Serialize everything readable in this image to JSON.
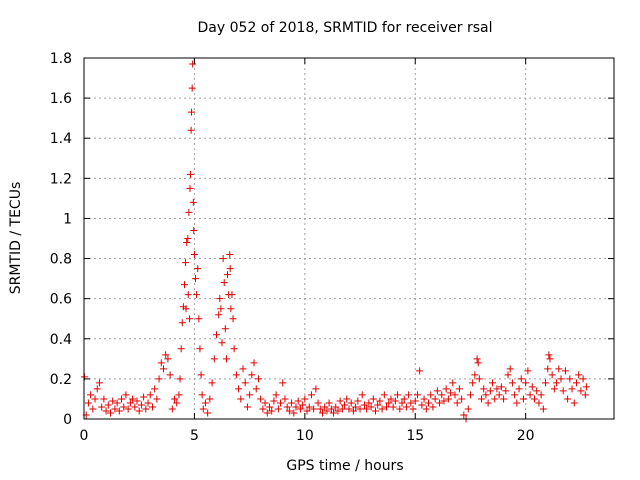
{
  "chart_data": {
    "type": "scatter",
    "title": "Day 052 of 2018, SRMTID for receiver rsal",
    "xlabel": "GPS time / hours",
    "ylabel": "SRMTID / TECUs",
    "xlim": [
      0,
      24
    ],
    "ylim": [
      0,
      1.8
    ],
    "x_ticks": [
      0,
      5,
      10,
      15,
      20
    ],
    "x_tick_labels": [
      "0",
      "5",
      "10",
      "15",
      "20"
    ],
    "y_ticks": [
      0,
      0.2,
      0.4,
      0.6,
      0.8,
      1.0,
      1.2,
      1.4,
      1.6,
      1.8
    ],
    "y_tick_labels": [
      "0",
      "0.2",
      "0.4",
      "0.6",
      "0.8",
      "1",
      "1.2",
      "1.4",
      "1.6",
      "1.8"
    ],
    "grid": true,
    "marker": "plus",
    "series_color": "#e00000",
    "series": [
      {
        "name": "SRMTID",
        "points": [
          [
            0.02,
            0.21
          ],
          [
            0.1,
            0.02
          ],
          [
            0.2,
            0.08
          ],
          [
            0.3,
            0.12
          ],
          [
            0.4,
            0.05
          ],
          [
            0.5,
            0.1
          ],
          [
            0.6,
            0.15
          ],
          [
            0.7,
            0.18
          ],
          [
            0.8,
            0.06
          ],
          [
            0.9,
            0.1
          ],
          [
            1.0,
            0.04
          ],
          [
            1.1,
            0.07
          ],
          [
            1.2,
            0.03
          ],
          [
            1.3,
            0.09
          ],
          [
            1.4,
            0.05
          ],
          [
            1.5,
            0.08
          ],
          [
            1.6,
            0.04
          ],
          [
            1.7,
            0.1
          ],
          [
            1.8,
            0.06
          ],
          [
            1.9,
            0.12
          ],
          [
            2.0,
            0.05
          ],
          [
            2.1,
            0.08
          ],
          [
            2.2,
            0.1
          ],
          [
            2.3,
            0.06
          ],
          [
            2.4,
            0.09
          ],
          [
            2.5,
            0.04
          ],
          [
            2.6,
            0.07
          ],
          [
            2.7,
            0.11
          ],
          [
            2.8,
            0.05
          ],
          [
            2.9,
            0.08
          ],
          [
            3.0,
            0.12
          ],
          [
            3.1,
            0.06
          ],
          [
            3.2,
            0.15
          ],
          [
            3.3,
            0.1
          ],
          [
            3.4,
            0.2
          ],
          [
            3.5,
            0.28
          ],
          [
            3.6,
            0.25
          ],
          [
            3.7,
            0.32
          ],
          [
            3.8,
            0.3
          ],
          [
            3.9,
            0.22
          ],
          [
            4.0,
            0.05
          ],
          [
            4.1,
            0.1
          ],
          [
            4.2,
            0.08
          ],
          [
            4.3,
            0.12
          ],
          [
            4.35,
            0.2
          ],
          [
            4.4,
            0.35
          ],
          [
            4.45,
            0.48
          ],
          [
            4.5,
            0.56
          ],
          [
            4.55,
            0.67
          ],
          [
            4.6,
            0.78
          ],
          [
            4.62,
            0.55
          ],
          [
            4.65,
            0.88
          ],
          [
            4.7,
            0.9
          ],
          [
            4.72,
            0.62
          ],
          [
            4.75,
            1.03
          ],
          [
            4.78,
            0.5
          ],
          [
            4.8,
            1.15
          ],
          [
            4.82,
            1.22
          ],
          [
            4.85,
            1.44
          ],
          [
            4.87,
            1.53
          ],
          [
            4.9,
            1.65
          ],
          [
            4.92,
            1.77
          ],
          [
            4.95,
            1.08
          ],
          [
            4.97,
            0.94
          ],
          [
            5.0,
            0.82
          ],
          [
            5.05,
            0.7
          ],
          [
            5.1,
            0.62
          ],
          [
            5.15,
            0.75
          ],
          [
            5.2,
            0.5
          ],
          [
            5.25,
            0.35
          ],
          [
            5.3,
            0.22
          ],
          [
            5.35,
            0.12
          ],
          [
            5.4,
            0.05
          ],
          [
            5.5,
            0.08
          ],
          [
            5.6,
            0.03
          ],
          [
            5.7,
            0.1
          ],
          [
            5.8,
            0.18
          ],
          [
            5.9,
            0.3
          ],
          [
            6.0,
            0.42
          ],
          [
            6.1,
            0.52
          ],
          [
            6.15,
            0.6
          ],
          [
            6.2,
            0.55
          ],
          [
            6.25,
            0.38
          ],
          [
            6.3,
            0.8
          ],
          [
            6.35,
            0.68
          ],
          [
            6.4,
            0.45
          ],
          [
            6.45,
            0.3
          ],
          [
            6.5,
            0.72
          ],
          [
            6.55,
            0.62
          ],
          [
            6.6,
            0.82
          ],
          [
            6.62,
            0.75
          ],
          [
            6.65,
            0.55
          ],
          [
            6.7,
            0.62
          ],
          [
            6.75,
            0.5
          ],
          [
            6.8,
            0.35
          ],
          [
            6.9,
            0.22
          ],
          [
            7.0,
            0.15
          ],
          [
            7.1,
            0.1
          ],
          [
            7.2,
            0.25
          ],
          [
            7.3,
            0.18
          ],
          [
            7.4,
            0.06
          ],
          [
            7.5,
            0.12
          ],
          [
            7.6,
            0.22
          ],
          [
            7.7,
            0.28
          ],
          [
            7.8,
            0.15
          ],
          [
            7.9,
            0.2
          ],
          [
            8.0,
            0.1
          ],
          [
            8.1,
            0.05
          ],
          [
            8.2,
            0.08
          ],
          [
            8.3,
            0.03
          ],
          [
            8.4,
            0.06
          ],
          [
            8.5,
            0.04
          ],
          [
            8.6,
            0.09
          ],
          [
            8.7,
            0.12
          ],
          [
            8.8,
            0.05
          ],
          [
            8.9,
            0.08
          ],
          [
            9.0,
            0.18
          ],
          [
            9.1,
            0.1
          ],
          [
            9.2,
            0.06
          ],
          [
            9.3,
            0.04
          ],
          [
            9.4,
            0.08
          ],
          [
            9.5,
            0.03
          ],
          [
            9.6,
            0.06
          ],
          [
            9.7,
            0.09
          ],
          [
            9.8,
            0.05
          ],
          [
            9.9,
            0.07
          ],
          [
            10.0,
            0.1
          ],
          [
            10.1,
            0.04
          ],
          [
            10.2,
            0.06
          ],
          [
            10.3,
            0.12
          ],
          [
            10.4,
            0.05
          ],
          [
            10.5,
            0.15
          ],
          [
            10.6,
            0.08
          ],
          [
            10.7,
            0.05
          ],
          [
            10.8,
            0.03
          ],
          [
            10.9,
            0.06
          ],
          [
            11.0,
            0.04
          ],
          [
            11.1,
            0.08
          ],
          [
            11.2,
            0.05
          ],
          [
            11.3,
            0.03
          ],
          [
            11.4,
            0.06
          ],
          [
            11.5,
            0.04
          ],
          [
            11.6,
            0.09
          ],
          [
            11.7,
            0.05
          ],
          [
            11.8,
            0.07
          ],
          [
            11.9,
            0.1
          ],
          [
            12.0,
            0.05
          ],
          [
            12.1,
            0.08
          ],
          [
            12.2,
            0.04
          ],
          [
            12.3,
            0.06
          ],
          [
            12.4,
            0.09
          ],
          [
            12.5,
            0.05
          ],
          [
            12.6,
            0.12
          ],
          [
            12.7,
            0.07
          ],
          [
            12.8,
            0.05
          ],
          [
            12.9,
            0.08
          ],
          [
            13.0,
            0.06
          ],
          [
            13.1,
            0.1
          ],
          [
            13.2,
            0.04
          ],
          [
            13.3,
            0.07
          ],
          [
            13.4,
            0.09
          ],
          [
            13.5,
            0.05
          ],
          [
            13.6,
            0.12
          ],
          [
            13.7,
            0.06
          ],
          [
            13.8,
            0.08
          ],
          [
            13.9,
            0.1
          ],
          [
            14.0,
            0.06
          ],
          [
            14.1,
            0.09
          ],
          [
            14.2,
            0.12
          ],
          [
            14.3,
            0.05
          ],
          [
            14.4,
            0.08
          ],
          [
            14.5,
            0.1
          ],
          [
            14.6,
            0.06
          ],
          [
            14.7,
            0.12
          ],
          [
            14.8,
            0.08
          ],
          [
            14.9,
            0.05
          ],
          [
            15.0,
            0.09
          ],
          [
            15.1,
            0.12
          ],
          [
            15.2,
            0.24
          ],
          [
            15.3,
            0.07
          ],
          [
            15.4,
            0.1
          ],
          [
            15.5,
            0.05
          ],
          [
            15.6,
            0.08
          ],
          [
            15.7,
            0.12
          ],
          [
            15.8,
            0.06
          ],
          [
            15.9,
            0.1
          ],
          [
            16.0,
            0.14
          ],
          [
            16.1,
            0.08
          ],
          [
            16.2,
            0.12
          ],
          [
            16.3,
            0.09
          ],
          [
            16.4,
            0.15
          ],
          [
            16.5,
            0.1
          ],
          [
            16.6,
            0.13
          ],
          [
            16.7,
            0.18
          ],
          [
            16.8,
            0.12
          ],
          [
            16.9,
            0.08
          ],
          [
            17.0,
            0.15
          ],
          [
            17.1,
            0.1
          ],
          [
            17.2,
            0.02
          ],
          [
            17.3,
            0.0
          ],
          [
            17.4,
            0.05
          ],
          [
            17.5,
            0.12
          ],
          [
            17.6,
            0.18
          ],
          [
            17.7,
            0.22
          ],
          [
            17.8,
            0.3
          ],
          [
            17.85,
            0.28
          ],
          [
            17.9,
            0.2
          ],
          [
            18.0,
            0.1
          ],
          [
            18.1,
            0.15
          ],
          [
            18.2,
            0.12
          ],
          [
            18.3,
            0.08
          ],
          [
            18.4,
            0.14
          ],
          [
            18.5,
            0.18
          ],
          [
            18.6,
            0.1
          ],
          [
            18.7,
            0.15
          ],
          [
            18.8,
            0.12
          ],
          [
            18.9,
            0.16
          ],
          [
            19.0,
            0.1
          ],
          [
            19.1,
            0.14
          ],
          [
            19.2,
            0.22
          ],
          [
            19.3,
            0.25
          ],
          [
            19.4,
            0.18
          ],
          [
            19.5,
            0.12
          ],
          [
            19.6,
            0.08
          ],
          [
            19.7,
            0.15
          ],
          [
            19.8,
            0.2
          ],
          [
            19.9,
            0.1
          ],
          [
            20.0,
            0.18
          ],
          [
            20.1,
            0.24
          ],
          [
            20.2,
            0.12
          ],
          [
            20.3,
            0.16
          ],
          [
            20.4,
            0.1
          ],
          [
            20.5,
            0.14
          ],
          [
            20.6,
            0.08
          ],
          [
            20.7,
            0.12
          ],
          [
            20.8,
            0.05
          ],
          [
            20.9,
            0.18
          ],
          [
            21.0,
            0.25
          ],
          [
            21.05,
            0.32
          ],
          [
            21.1,
            0.3
          ],
          [
            21.2,
            0.22
          ],
          [
            21.3,
            0.15
          ],
          [
            21.4,
            0.18
          ],
          [
            21.5,
            0.25
          ],
          [
            21.6,
            0.2
          ],
          [
            21.7,
            0.14
          ],
          [
            21.8,
            0.24
          ],
          [
            21.9,
            0.1
          ],
          [
            22.0,
            0.2
          ],
          [
            22.1,
            0.15
          ],
          [
            22.2,
            0.08
          ],
          [
            22.3,
            0.18
          ],
          [
            22.4,
            0.22
          ],
          [
            22.5,
            0.14
          ],
          [
            22.6,
            0.2
          ],
          [
            22.7,
            0.12
          ],
          [
            22.75,
            0.16
          ]
        ]
      }
    ]
  }
}
